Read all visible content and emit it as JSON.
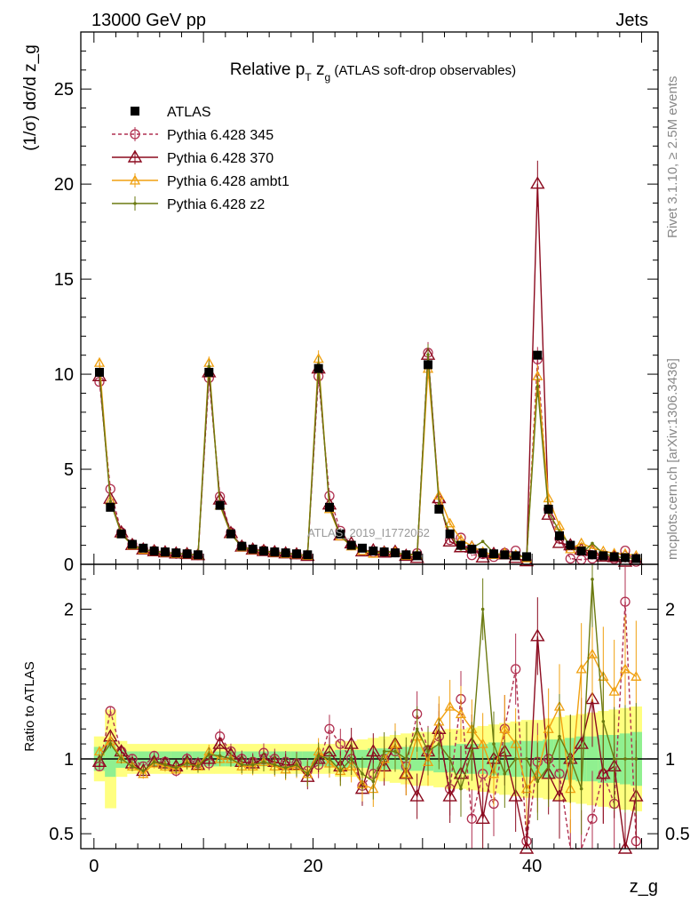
{
  "header": {
    "left": "13000 GeV pp",
    "right": "Jets"
  },
  "side_labels": {
    "rivet": "Rivet 3.1.10, ≥ 2.5M events",
    "mcplots": "mcplots.cern.ch [arXiv:1306.3436]"
  },
  "chart_data": {
    "type": "line",
    "title_parts": [
      "Relative p",
      "T",
      " z",
      "g",
      " (ATLAS soft-drop observables)"
    ],
    "watermark": "ATLAS_2019_I1772062",
    "main_panel": {
      "ylabel": "(1/σ) dσ/d z_g",
      "ylim": [
        0,
        28
      ],
      "yticks": [
        0,
        5,
        10,
        15,
        20,
        25
      ],
      "yticklabels": [
        "0",
        "5",
        "10",
        "15",
        "20",
        "25"
      ]
    },
    "ratio_panel": {
      "ylabel": "Ratio to ATLAS",
      "ylim": [
        0.4,
        2.3
      ],
      "yticks": [
        0.5,
        1,
        2
      ],
      "yticklabels": [
        "0.5",
        "1",
        "2"
      ]
    },
    "xlabel": "z_g",
    "xlim": [
      -1.2,
      51.5
    ],
    "xticks": [
      0,
      20,
      40
    ],
    "xticklabels": [
      "0",
      "20",
      "40"
    ],
    "x": [
      0.5,
      1.5,
      2.5,
      3.5,
      4.5,
      5.5,
      6.5,
      7.5,
      8.5,
      9.5,
      10.5,
      11.5,
      12.5,
      13.5,
      14.5,
      15.5,
      16.5,
      17.5,
      18.5,
      19.5,
      20.5,
      21.5,
      22.5,
      23.5,
      24.5,
      25.5,
      26.5,
      27.5,
      28.5,
      29.5,
      30.5,
      31.5,
      32.5,
      33.5,
      34.5,
      35.5,
      36.5,
      37.5,
      38.5,
      39.5,
      40.5,
      41.5,
      42.5,
      43.5,
      44.5,
      45.5,
      46.5,
      47.5,
      48.5,
      49.5
    ],
    "atlas": [
      10.1,
      3.0,
      1.6,
      1.05,
      0.85,
      0.7,
      0.65,
      0.6,
      0.55,
      0.5,
      10.1,
      3.1,
      1.6,
      0.95,
      0.8,
      0.7,
      0.65,
      0.6,
      0.55,
      0.5,
      10.3,
      3.0,
      1.6,
      1.0,
      0.85,
      0.7,
      0.65,
      0.6,
      0.5,
      0.45,
      10.5,
      2.9,
      1.6,
      1.0,
      0.8,
      0.6,
      0.55,
      0.5,
      0.45,
      0.4,
      11.0,
      2.9,
      1.5,
      1.0,
      0.7,
      0.5,
      0.45,
      0.4,
      0.35,
      0.3
    ],
    "series": [
      {
        "name": "ATLAS",
        "color": "#000000",
        "style": "data"
      },
      {
        "name": "Pythia 6.428 345",
        "color": "#b03050",
        "style": "dashed-circle",
        "ratio": [
          0.95,
          1.32,
          1.05,
          1.0,
          0.95,
          1.02,
          0.98,
          0.92,
          1.0,
          0.97,
          0.97,
          1.15,
          1.05,
          1.0,
          0.98,
          1.04,
          1.0,
          0.98,
          0.97,
          0.92,
          0.96,
          1.2,
          1.1,
          1.0,
          0.82,
          0.9,
          1.0,
          1.05,
          0.95,
          1.3,
          1.06,
          1.15,
          0.8,
          1.4,
          0.6,
          0.9,
          0.7,
          1.2,
          1.6,
          0.45,
          0.98,
          1.0,
          0.9,
          0.3,
          0.35,
          0.6,
          0.9,
          0.7,
          2.05,
          0.45
        ]
      },
      {
        "name": "Pythia 6.428 370",
        "color": "#8b0a1e",
        "style": "solid-triangle",
        "ratio": [
          0.98,
          1.15,
          1.05,
          0.97,
          0.92,
          0.98,
          0.97,
          0.95,
          0.98,
          0.96,
          1.0,
          1.1,
          1.03,
          0.98,
          0.97,
          1.0,
          0.98,
          0.96,
          0.96,
          0.88,
          1.0,
          1.05,
          0.95,
          1.1,
          0.8,
          1.05,
          0.95,
          1.1,
          0.9,
          0.75,
          1.05,
          1.2,
          0.75,
          0.9,
          1.1,
          0.6,
          1.0,
          1.05,
          0.75,
          0.4,
          1.82,
          0.9,
          0.75,
          1.0,
          1.1,
          1.4,
          0.9,
          0.95,
          0.4,
          0.75
        ]
      },
      {
        "name": "Pythia 6.428 ambt1",
        "color": "#f0a010",
        "style": "solid-triangle-open",
        "ratio": [
          1.05,
          1.12,
          1.0,
          0.95,
          0.9,
          0.97,
          0.95,
          0.93,
          0.97,
          0.95,
          1.05,
          1.0,
          1.0,
          0.95,
          0.95,
          0.98,
          0.95,
          0.93,
          0.95,
          0.9,
          1.05,
          0.97,
          0.92,
          0.95,
          0.83,
          0.8,
          1.0,
          1.1,
          0.9,
          1.15,
          0.98,
          1.25,
          1.35,
          1.3,
          1.2,
          1.1,
          0.9,
          1.2,
          1.1,
          0.8,
          0.9,
          1.2,
          1.35,
          0.8,
          1.6,
          1.7,
          1.55,
          1.45,
          1.6,
          1.55
        ]
      },
      {
        "name": "Pythia 6.428 z2",
        "color": "#6b7a10",
        "style": "solid-dot",
        "ratio": [
          1.0,
          1.1,
          1.0,
          0.95,
          0.92,
          0.98,
          0.96,
          0.94,
          0.97,
          0.95,
          1.03,
          1.02,
          1.0,
          0.96,
          0.96,
          0.98,
          0.96,
          0.94,
          0.96,
          0.9,
          1.02,
          1.0,
          0.92,
          1.0,
          0.9,
          0.85,
          1.05,
          1.05,
          1.0,
          1.2,
          1.05,
          1.1,
          1.0,
          0.8,
          1.05,
          2.0,
          1.1,
          0.9,
          1.0,
          1.0,
          0.85,
          0.95,
          1.15,
          1.0,
          0.8,
          2.2,
          1.25,
          1.0,
          1.0,
          1.0
        ]
      }
    ],
    "bands": {
      "inner": [
        0.08,
        0.12,
        0.06,
        0.05,
        0.05,
        0.05,
        0.05,
        0.05,
        0.05,
        0.05,
        0.05,
        0.05,
        0.05,
        0.05,
        0.05,
        0.05,
        0.05,
        0.05,
        0.05,
        0.05,
        0.05,
        0.05,
        0.06,
        0.06,
        0.06,
        0.07,
        0.07,
        0.07,
        0.08,
        0.08,
        0.08,
        0.09,
        0.09,
        0.1,
        0.1,
        0.1,
        0.11,
        0.11,
        0.12,
        0.12,
        0.12,
        0.13,
        0.13,
        0.14,
        0.15,
        0.15,
        0.16,
        0.16,
        0.17,
        0.18
      ],
      "outer": [
        0.15,
        0.33,
        0.12,
        0.1,
        0.1,
        0.1,
        0.1,
        0.1,
        0.1,
        0.1,
        0.1,
        0.1,
        0.1,
        0.1,
        0.1,
        0.1,
        0.1,
        0.1,
        0.1,
        0.1,
        0.1,
        0.1,
        0.12,
        0.12,
        0.13,
        0.14,
        0.15,
        0.16,
        0.17,
        0.18,
        0.18,
        0.19,
        0.2,
        0.2,
        0.21,
        0.22,
        0.23,
        0.24,
        0.25,
        0.26,
        0.26,
        0.27,
        0.28,
        0.29,
        0.3,
        0.31,
        0.32,
        0.33,
        0.34,
        0.35
      ]
    }
  }
}
